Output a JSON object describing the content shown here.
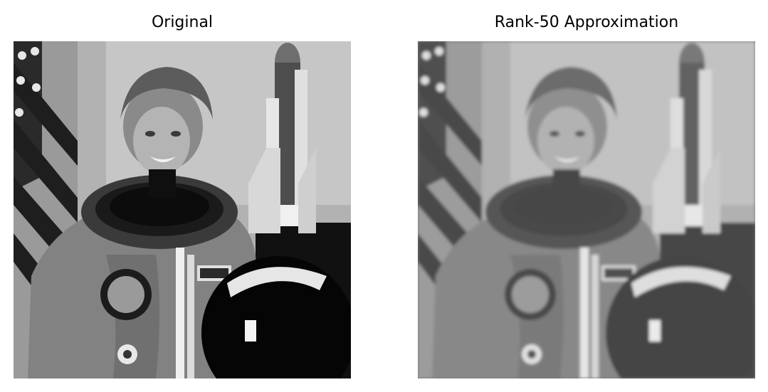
{
  "figure": {
    "panels": [
      {
        "title": "Original",
        "image_subject": "grayscale photograph of an astronaut in a flight suit holding a helmet, with a US flag and a space shuttle model in the background"
      },
      {
        "title": "Rank-50 Approximation",
        "image_subject": "blurred low-rank reconstruction of the same astronaut photograph"
      }
    ]
  }
}
